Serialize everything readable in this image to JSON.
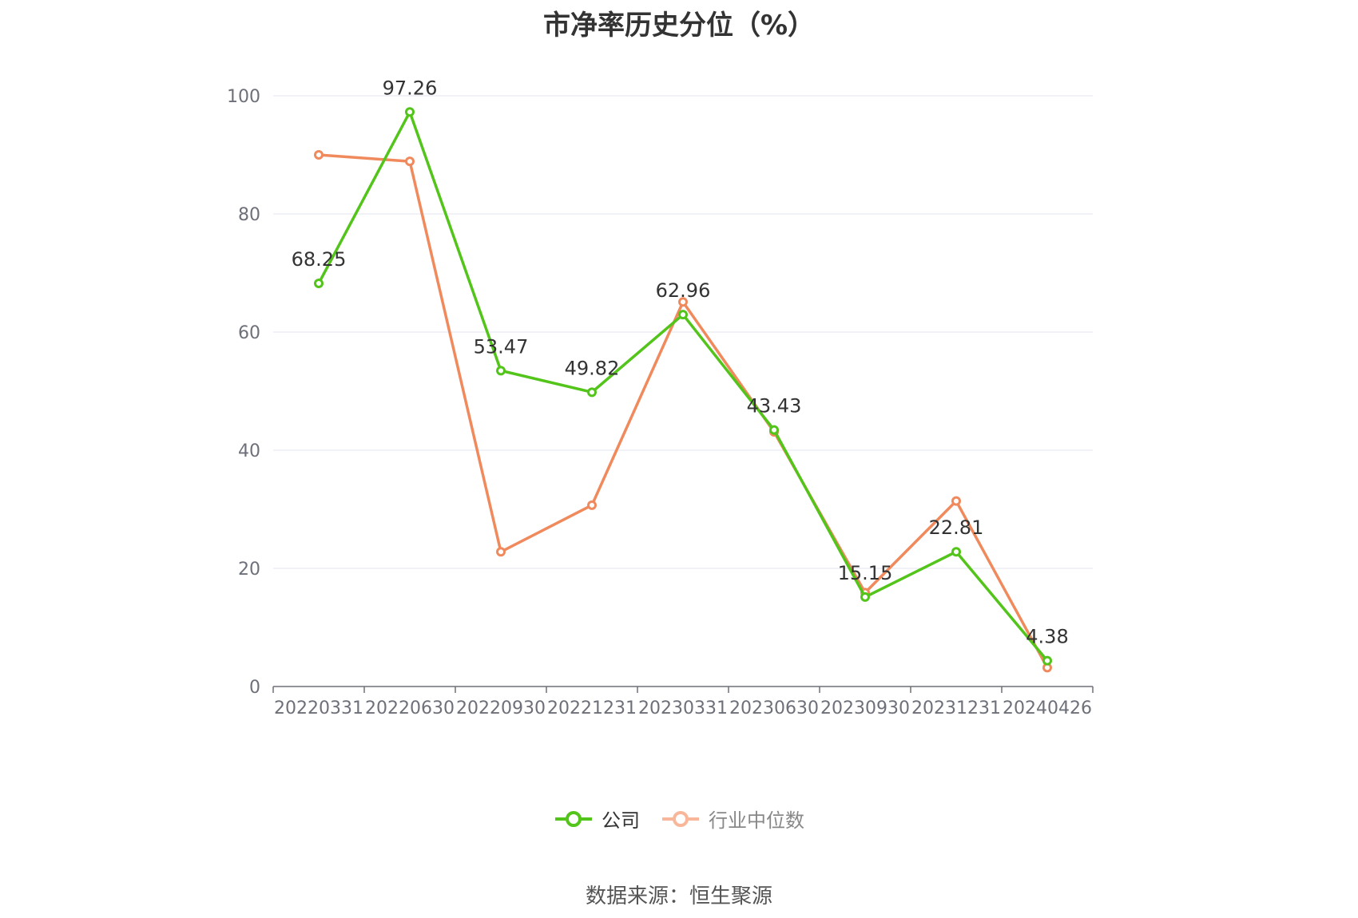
{
  "title": "市净率历史分位（%）",
  "source": "数据来源：恒生聚源",
  "colors": {
    "company": "#52c41a",
    "industry": "#f08a5d",
    "grid": "#e0e6f1",
    "axis": "#6e7079",
    "tick_text": "#6e7079",
    "label_text": "#333333"
  },
  "chart_data": {
    "type": "line",
    "categories": [
      "20220331",
      "20220630",
      "20220930",
      "20221231",
      "20230331",
      "20230630",
      "20230930",
      "20231231",
      "20240426"
    ],
    "ylim": [
      0,
      100
    ],
    "yticks": [
      0,
      20,
      40,
      60,
      80,
      100
    ],
    "grid": true,
    "legend_placement": "bottom-center",
    "series": [
      {
        "name": "公司",
        "values": [
          68.25,
          97.26,
          53.47,
          49.82,
          62.96,
          43.43,
          15.15,
          22.81,
          4.38
        ],
        "labels": [
          "68.25",
          "97.26",
          "53.47",
          "49.82",
          "62.96",
          "43.43",
          "15.15",
          "22.81",
          "4.38"
        ],
        "show_labels": true
      },
      {
        "name": "行业中位数",
        "values": [
          90.0,
          88.9,
          22.8,
          30.7,
          65.1,
          43.1,
          15.9,
          31.4,
          3.2
        ],
        "show_labels": false
      }
    ]
  }
}
